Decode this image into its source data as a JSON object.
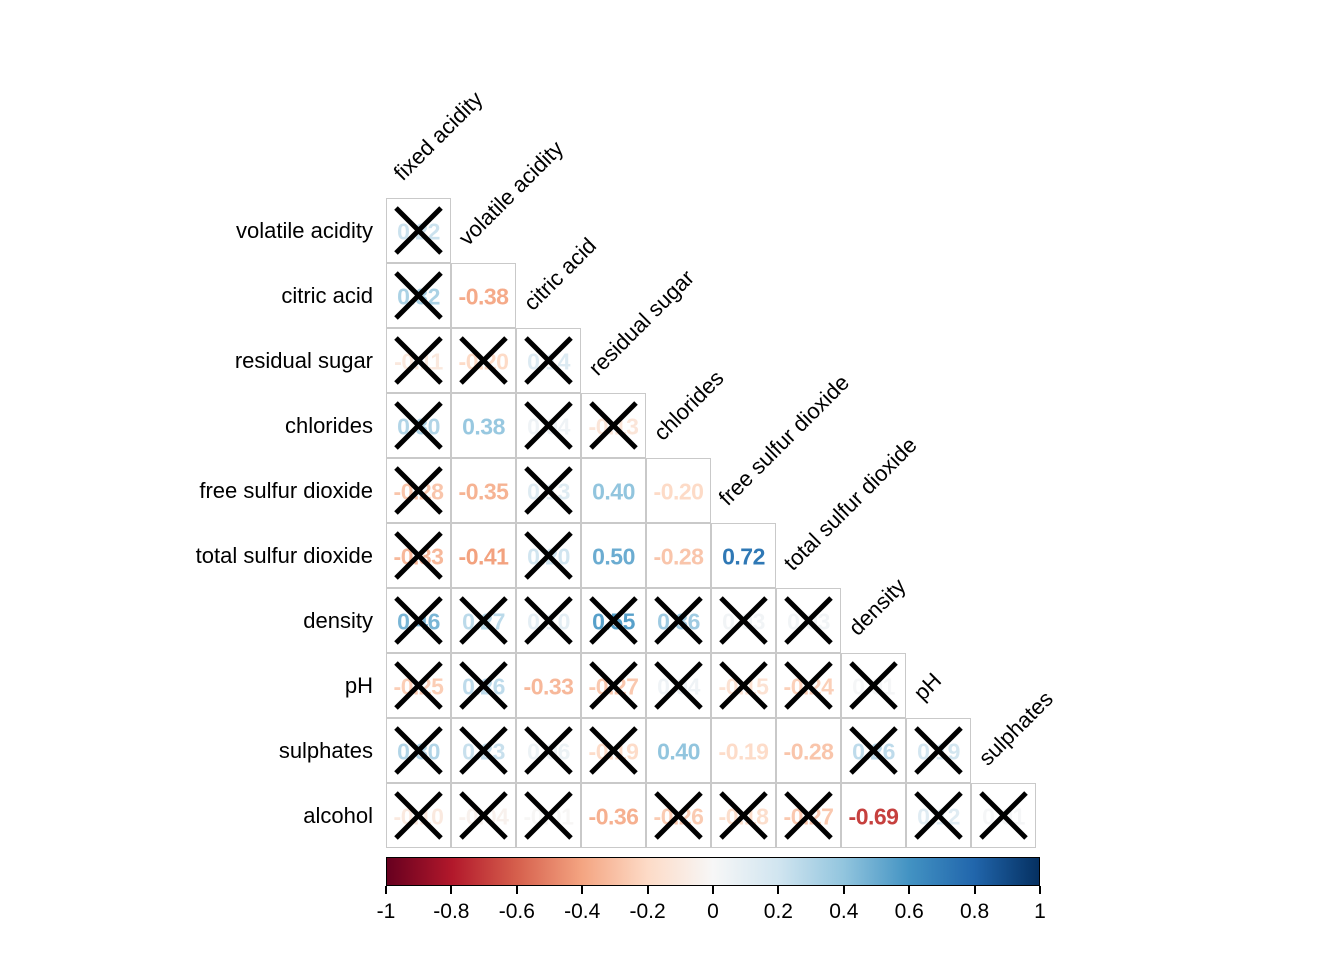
{
  "chart_data": {
    "type": "heatmap",
    "subtype": "lower-triangle correlation matrix (numbers colored by value, X = crossed-out cell)",
    "title": "",
    "col_labels": [
      "fixed acidity",
      "volatile acidity",
      "citric acid",
      "residual sugar",
      "chlorides",
      "free sulfur dioxide",
      "total sulfur dioxide",
      "density",
      "pH",
      "sulphates"
    ],
    "row_labels": [
      "volatile acidity",
      "citric acid",
      "residual sugar",
      "chlorides",
      "free sulfur dioxide",
      "total sulfur dioxide",
      "density",
      "pH",
      "sulphates",
      "alcohol"
    ],
    "values": [
      [
        0.22
      ],
      [
        0.32,
        -0.38
      ],
      [
        -0.11,
        -0.2,
        0.14
      ],
      [
        0.3,
        0.38,
        0.04,
        -0.13
      ],
      [
        -0.28,
        -0.35,
        0.13,
        0.4,
        -0.2
      ],
      [
        -0.33,
        -0.41,
        0.2,
        0.5,
        -0.28,
        0.72
      ],
      [
        0.46,
        0.27,
        0.1,
        0.55,
        0.36,
        0.03,
        0.03
      ],
      [
        -0.25,
        0.26,
        -0.33,
        -0.27,
        0.04,
        -0.15,
        -0.24,
        0.01
      ],
      [
        0.3,
        0.23,
        0.06,
        -0.19,
        0.4,
        -0.19,
        -0.28,
        0.26,
        0.19
      ],
      [
        -0.1,
        -0.04,
        -0.01,
        -0.36,
        -0.26,
        -0.18,
        -0.27,
        -0.69,
        0.12,
        0.01
      ]
    ],
    "crossed": [
      [
        1
      ],
      [
        1,
        0
      ],
      [
        1,
        1,
        1
      ],
      [
        1,
        0,
        1,
        1
      ],
      [
        1,
        0,
        1,
        0,
        0
      ],
      [
        1,
        0,
        1,
        0,
        0,
        0
      ],
      [
        1,
        1,
        1,
        1,
        1,
        1,
        1
      ],
      [
        1,
        1,
        0,
        1,
        1,
        1,
        1,
        1
      ],
      [
        1,
        1,
        1,
        1,
        0,
        0,
        0,
        1,
        1
      ],
      [
        1,
        1,
        1,
        0,
        1,
        1,
        1,
        0,
        1,
        1
      ]
    ],
    "value_range": [
      -1,
      1
    ],
    "colorbar": {
      "tick_labels": [
        "-1",
        "-0.8",
        "-0.6",
        "-0.4",
        "-0.2",
        "0",
        "0.2",
        "0.4",
        "0.6",
        "0.8",
        "1"
      ],
      "orientation": "horizontal",
      "position": "bottom"
    },
    "palette": {
      "name": "RdBu",
      "stops": [
        {
          "v": -1.0,
          "c": "#67001F"
        },
        {
          "v": -0.8,
          "c": "#B2182B"
        },
        {
          "v": -0.6,
          "c": "#D6604D"
        },
        {
          "v": -0.4,
          "c": "#F4A582"
        },
        {
          "v": -0.2,
          "c": "#FDDBC7"
        },
        {
          "v": 0.0,
          "c": "#F7F7F7"
        },
        {
          "v": 0.2,
          "c": "#D1E5F0"
        },
        {
          "v": 0.4,
          "c": "#92C5DE"
        },
        {
          "v": 0.6,
          "c": "#4393C3"
        },
        {
          "v": 0.8,
          "c": "#2166AC"
        },
        {
          "v": 1.0,
          "c": "#053061"
        }
      ]
    },
    "colors": {
      "background": "#ffffff",
      "grid_line": "#c9c9c9",
      "cross_mark": "#000000",
      "label_text": "#000000"
    }
  }
}
